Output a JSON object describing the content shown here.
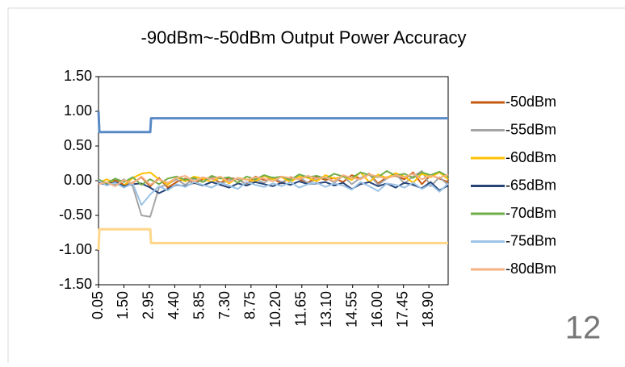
{
  "chart_data": {
    "type": "line",
    "title": "-90dBm~-50dBm Output Power Accuracy",
    "annotation": "12",
    "x": [
      0.05,
      0.5,
      1,
      1.5,
      2,
      2.5,
      3,
      3.5,
      4,
      4.5,
      5,
      5.5,
      6,
      6.5,
      7,
      7.5,
      8,
      8.5,
      9,
      9.5,
      10,
      10.5,
      11,
      11.5,
      12,
      12.5,
      13,
      13.5,
      14,
      14.5,
      15,
      15.5,
      16,
      16.5,
      17,
      17.5,
      18,
      18.5,
      19,
      19.5,
      20
    ],
    "xlim": [
      0.05,
      20
    ],
    "xticks": [
      {
        "value": 0.05,
        "label": "0.05"
      },
      {
        "value": 1.5,
        "label": "1.50"
      },
      {
        "value": 2.95,
        "label": "2.95"
      },
      {
        "value": 4.4,
        "label": "4.40"
      },
      {
        "value": 5.85,
        "label": "5.85"
      },
      {
        "value": 7.3,
        "label": "7.30"
      },
      {
        "value": 8.75,
        "label": "8.75"
      },
      {
        "value": 10.2,
        "label": "10.20"
      },
      {
        "value": 11.65,
        "label": "11.65"
      },
      {
        "value": 13.1,
        "label": "13.10"
      },
      {
        "value": 14.55,
        "label": "14.55"
      },
      {
        "value": 16,
        "label": "16.00"
      },
      {
        "value": 17.45,
        "label": "17.45"
      },
      {
        "value": 18.9,
        "label": "18.90"
      }
    ],
    "ylim": [
      -1.5,
      1.5
    ],
    "yticks": [
      {
        "value": -1.5,
        "label": "-1.50"
      },
      {
        "value": -1,
        "label": "-1.00"
      },
      {
        "value": -0.5,
        "label": "-0.50"
      },
      {
        "value": 0,
        "label": "0.00"
      },
      {
        "value": 0.5,
        "label": "0.50"
      },
      {
        "value": 1,
        "label": "1.00"
      },
      {
        "value": 1.5,
        "label": "1.50"
      }
    ],
    "grid": false,
    "legend": "right",
    "series": [
      {
        "color": "#5a8ac6",
        "x": [
          0.05,
          0.1,
          3,
          3.05,
          20
        ],
        "values": [
          1,
          0.7,
          0.7,
          0.9,
          0.9
        ]
      },
      {
        "color": "#ffd68a",
        "x": [
          0.05,
          0.1,
          3,
          3.05,
          20
        ],
        "values": [
          -1,
          -0.7,
          -0.7,
          -0.9,
          -0.9
        ]
      },
      {
        "name": "-50dBm",
        "color": "#c55a11",
        "values": [
          -0.02,
          -0.05,
          0.01,
          -0.06,
          -0.03,
          0.05,
          -0.08,
          0.04,
          -0.1,
          -0.02,
          0.03,
          -0.04,
          0.02,
          0.05,
          -0.03,
          0.04,
          0.02,
          -0.05,
          0.06,
          0.01,
          0.03,
          -0.04,
          0.05,
          0.02,
          -0.03,
          0.06,
          0.01,
          0.04,
          -0.02,
          0.08,
          0.03,
          0.1,
          -0.04,
          0.05,
          0.07,
          0.02,
          0.12,
          -0.05,
          0.08,
          0.03,
          -0.02
        ]
      },
      {
        "name": "-55dBm",
        "color": "#a5a5a5",
        "values": [
          0.01,
          -0.03,
          -0.06,
          0.02,
          -0.08,
          -0.5,
          -0.52,
          -0.1,
          -0.05,
          0.02,
          -0.06,
          0.03,
          -0.02,
          0.04,
          -0.05,
          0.01,
          0.03,
          -0.06,
          0.02,
          -0.03,
          0.05,
          -0.02,
          0.03,
          0.06,
          -0.04,
          0.02,
          0.05,
          -0.03,
          0.07,
          -0.05,
          0.04,
          0.09,
          -0.06,
          0.03,
          0.1,
          -0.04,
          0.06,
          0.14,
          -0.08,
          0.05,
          -0.06
        ]
      },
      {
        "name": "-60dBm",
        "color": "#ffc000",
        "values": [
          -0.04,
          0.02,
          -0.03,
          -0.07,
          0.04,
          0.1,
          0.12,
          0.02,
          -0.06,
          0.05,
          -0.01,
          0.06,
          0.03,
          -0.02,
          0.05,
          -0.04,
          0.04,
          0.02,
          -0.01,
          0.07,
          0.02,
          0.05,
          -0.02,
          0.06,
          0.04,
          -0.01,
          0.08,
          0.03,
          0.06,
          0.01,
          0.12,
          -0.02,
          0.09,
          0.04,
          0.11,
          0.06,
          -0.03,
          0.1,
          0.05,
          0.12,
          0.02
        ]
      },
      {
        "name": "-65dBm",
        "color": "#264478",
        "values": [
          -0.03,
          -0.06,
          -0.02,
          -0.08,
          -0.05,
          -0.04,
          -0.1,
          -0.18,
          -0.12,
          -0.06,
          -0.08,
          -0.03,
          -0.07,
          -0.02,
          -0.06,
          -0.1,
          -0.04,
          -0.07,
          -0.02,
          -0.05,
          -0.08,
          -0.03,
          -0.06,
          -0.01,
          -0.05,
          -0.04,
          -0.02,
          -0.07,
          -0.03,
          -0.12,
          -0.05,
          -0.02,
          -0.08,
          -0.04,
          -0.1,
          -0.03,
          -0.06,
          -0.11,
          -0.02,
          -0.14,
          -0.07
        ]
      },
      {
        "name": "-70dBm",
        "color": "#70ad47",
        "values": [
          0.02,
          -0.04,
          0.03,
          -0.02,
          0.05,
          -0.06,
          0.02,
          -0.05,
          0.03,
          0.06,
          0.01,
          0.04,
          -0.02,
          0.07,
          0.03,
          0.05,
          -0.03,
          0.06,
          0.02,
          0.08,
          0.04,
          0.06,
          0.01,
          0.09,
          0.05,
          0.07,
          0.03,
          0.1,
          0.06,
          0.04,
          0.12,
          0.08,
          0.05,
          0.14,
          0.07,
          0.1,
          0.04,
          0.12,
          0.08,
          0.13,
          0.06
        ]
      },
      {
        "name": "-75dBm",
        "color": "#9dc3e6",
        "values": [
          0,
          -0.07,
          -0.03,
          -0.1,
          -0.04,
          -0.35,
          -0.2,
          -0.08,
          -0.14,
          -0.05,
          -0.09,
          -0.02,
          -0.06,
          -0.1,
          -0.03,
          -0.07,
          -0.12,
          -0.02,
          -0.06,
          -0.09,
          -0.04,
          -0.08,
          -0.02,
          -0.1,
          -0.05,
          -0.03,
          -0.09,
          -0.04,
          -0.07,
          -0.13,
          -0.02,
          -0.08,
          -0.15,
          -0.04,
          -0.06,
          -0.1,
          -0.03,
          -0.12,
          -0.05,
          -0.16,
          -0.04
        ]
      },
      {
        "name": "-80dBm",
        "color": "#f4b183",
        "values": [
          -0.05,
          -0.02,
          -0.08,
          0.01,
          -0.04,
          0.06,
          -0.06,
          0.02,
          -0.03,
          0.04,
          0.07,
          -0.01,
          0.05,
          0.02,
          0.06,
          -0.02,
          0.04,
          0.01,
          0.05,
          0.03,
          -0.01,
          0.06,
          0.04,
          0.02,
          0.07,
          0.03,
          0.05,
          -0.01,
          0.08,
          0.04,
          0.02,
          0.09,
          0.06,
          0.03,
          0.08,
          0.05,
          0.1,
          0.02,
          0.07,
          0.04,
          0.09
        ]
      }
    ]
  }
}
